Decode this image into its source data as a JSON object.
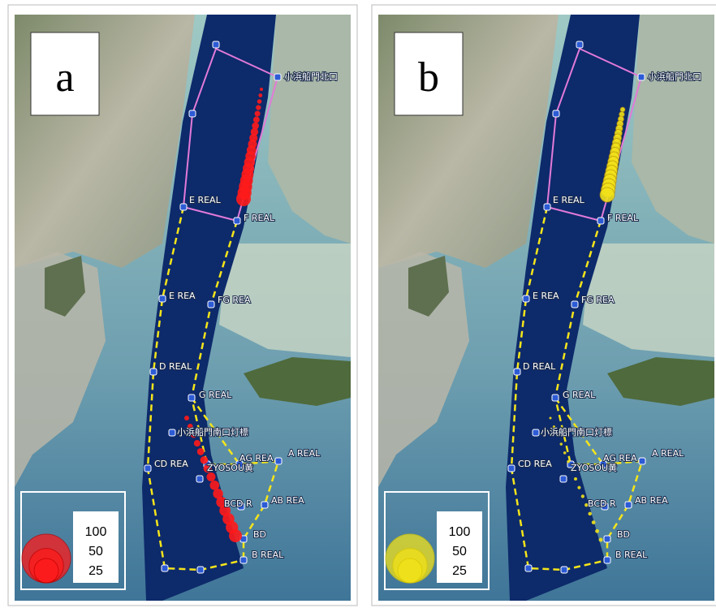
{
  "panels": [
    {
      "label": "a",
      "color": "#ff1a1a",
      "legend": {
        "values": [
          100,
          50,
          25
        ]
      }
    },
    {
      "label": "b",
      "color": "#f2e21a",
      "legend": {
        "values": [
          100,
          50,
          25
        ]
      }
    }
  ],
  "place_labels": [
    "小浜船門北口",
    "E REAL",
    "F REAL",
    "E REA",
    "FG REA",
    "D REAL",
    "G REAL",
    "小浜船門南口灯標",
    "CD REA",
    "ZYOSOU黄",
    "AG REA",
    "A REAL",
    "AB REA",
    "BCD R",
    "BD",
    "B REAL"
  ]
}
